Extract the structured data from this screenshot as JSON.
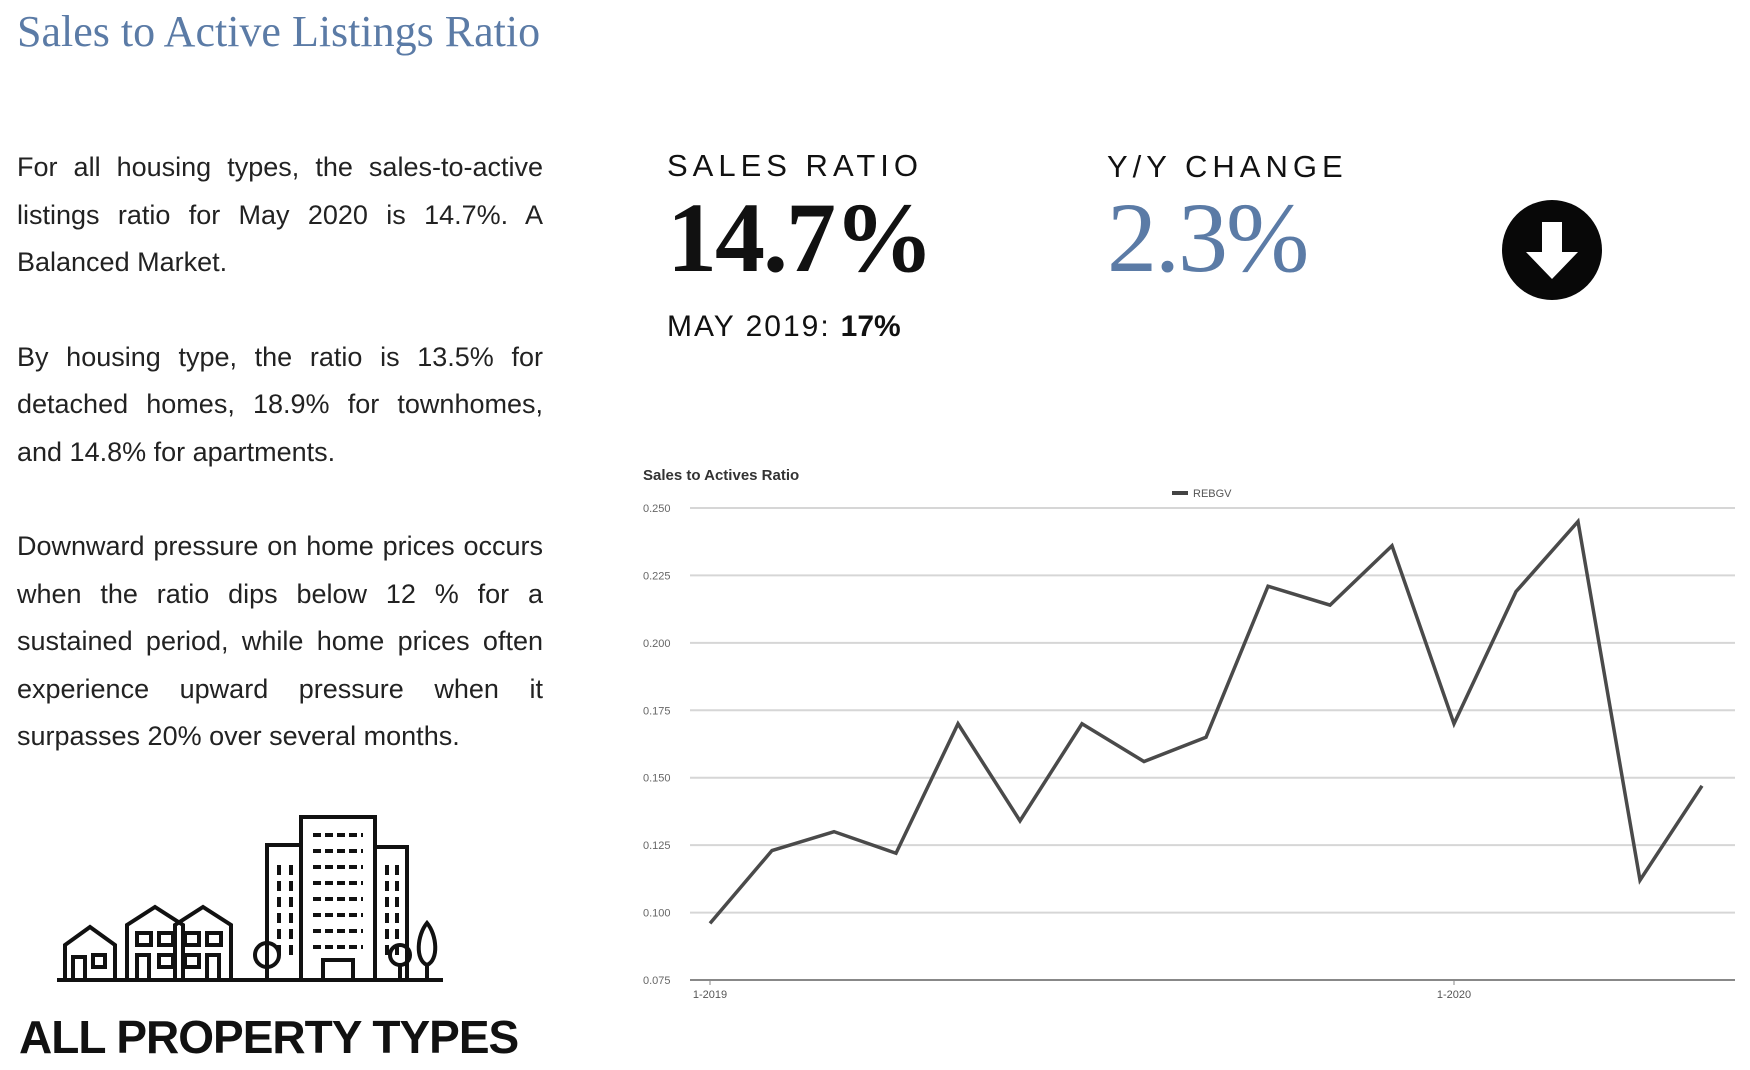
{
  "title": "Sales to Active Listings Ratio",
  "paragraphs": [
    "For all housing types, the sales-to-active listings ratio for May 2020 is 14.7%.  A Balanced Market.",
    "By housing type, the ratio is 13.5% for detached homes, 18.9% for townhomes, and 14.8% for apartments.",
    "Downward pressure on home prices occurs when the ratio dips below 12 % for a sustained period, while home prices often experience upward pressure when it surpasses 20% over several months."
  ],
  "sales_ratio": {
    "label": "SALES RATIO",
    "value": "14.7%",
    "prev_label": "MAY 2019:",
    "prev_value": "17%"
  },
  "yy_change": {
    "label": "Y/Y CHANGE",
    "value": "2.3%",
    "direction_icon": "arrow-down-circle-icon"
  },
  "property_types_label": "ALL PROPERTY TYPES",
  "colors": {
    "accent": "#5b7ba6",
    "line": "#4a4a4a",
    "grid": "#d6d6d6"
  },
  "chart_data": {
    "type": "line",
    "title": "Sales to Actives Ratio",
    "xlabel": "",
    "ylabel": "",
    "x": [
      "1-2019",
      "2-2019",
      "3-2019",
      "4-2019",
      "5-2019",
      "6-2019",
      "7-2019",
      "8-2019",
      "9-2019",
      "10-2019",
      "11-2019",
      "12-2019",
      "1-2020",
      "2-2020",
      "3-2020",
      "4-2020",
      "5-2020"
    ],
    "x_tick_labels": [
      "1-2019",
      "1-2020"
    ],
    "series": [
      {
        "name": "REBGV",
        "values": [
          0.096,
          0.123,
          0.13,
          0.122,
          0.17,
          0.134,
          0.17,
          0.156,
          0.165,
          0.221,
          0.214,
          0.236,
          0.17,
          0.219,
          0.245,
          0.112,
          0.147
        ]
      }
    ],
    "y_ticks": [
      "0.075",
      "0.100",
      "0.125",
      "0.150",
      "0.175",
      "0.200",
      "0.225",
      "0.250"
    ],
    "ylim": [
      0.075,
      0.25
    ],
    "grid": true,
    "legend": "top-center"
  }
}
